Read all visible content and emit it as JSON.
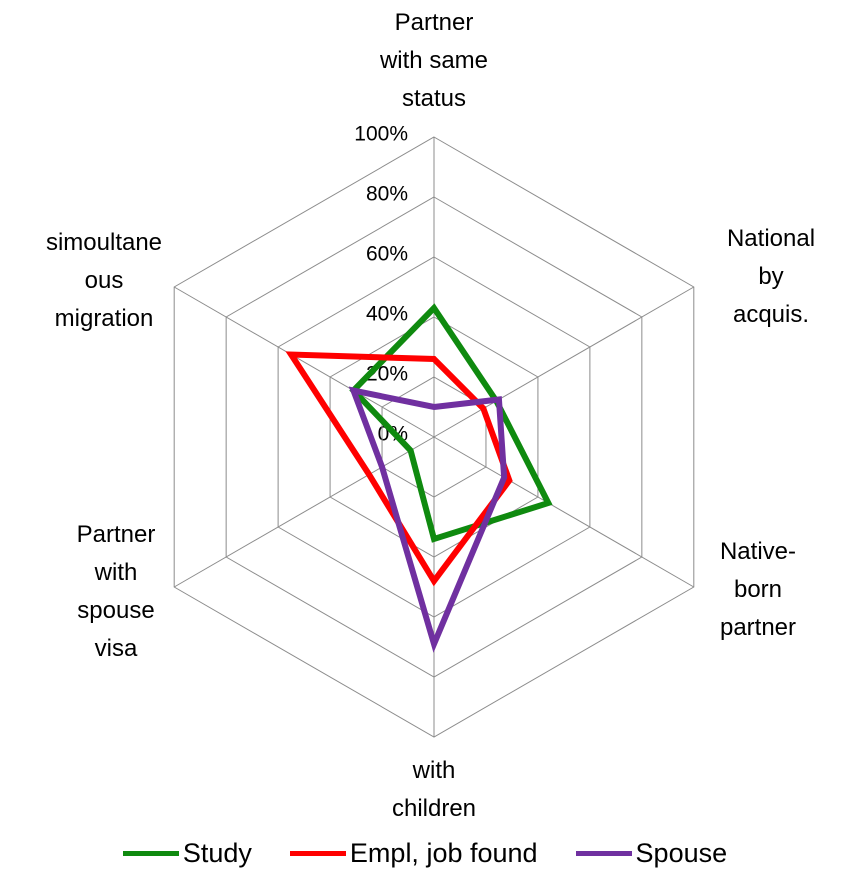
{
  "chart_data": {
    "type": "radar",
    "categories": [
      "Partner\nwith same\nstatus",
      "National\nby acquis.",
      "Native-\nborn\npartner",
      "with\nchildren",
      "Partner\nwith\nspouse\nvisa",
      "simoultane\nous\nmigration"
    ],
    "series": [
      {
        "name": "Study",
        "color": "#0f8a0f",
        "values": [
          43,
          24,
          44,
          34,
          9,
          31
        ]
      },
      {
        "name": "Empl, job found",
        "color": "#ff0000",
        "values": [
          26,
          19,
          29,
          48,
          25,
          55
        ]
      },
      {
        "name": "Spouse",
        "color": "#7030a0",
        "values": [
          10,
          25,
          27,
          69,
          20,
          31
        ]
      }
    ],
    "ylim": [
      0,
      100
    ],
    "yticks": [
      {
        "value": 0,
        "label": "0%"
      },
      {
        "value": 20,
        "label": "20%"
      },
      {
        "value": 40,
        "label": "40%"
      },
      {
        "value": 60,
        "label": "60%"
      },
      {
        "value": 80,
        "label": "80%"
      },
      {
        "value": 100,
        "label": "100%"
      }
    ],
    "grid": true
  }
}
